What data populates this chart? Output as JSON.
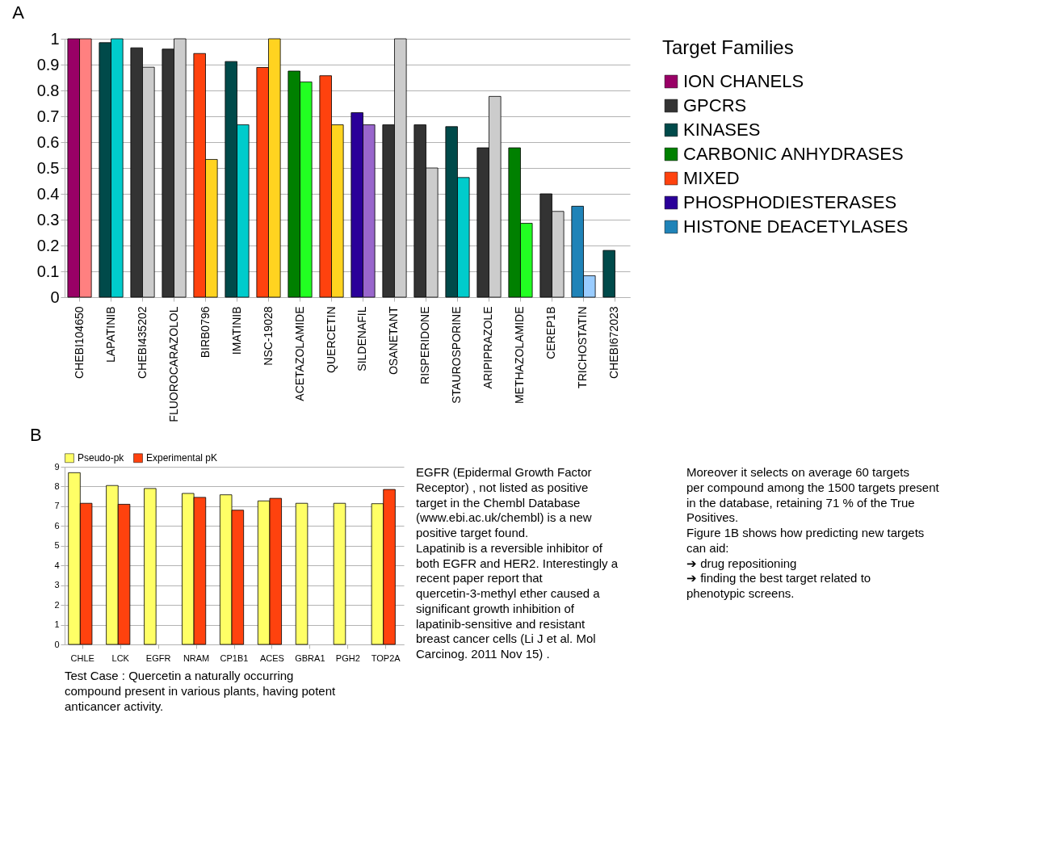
{
  "chart_data": [
    {
      "type": "bar",
      "title": "A",
      "legend_title": "Target Families",
      "legend": "right",
      "grid": "y",
      "categories": [
        "CHEBI104650",
        "LAPATINIB",
        "CHEBI435202",
        "FLUOROCARAZOLOL",
        "BIRB0796",
        "IMATINIB",
        "NSC-19028",
        "ACETAZOLAMIDE",
        "QUERCETIN",
        "SILDENAFIL",
        "OSANETANT",
        "RISPERIDONE",
        "STAUROSPORINE",
        "ARIPIPRAZOLE",
        "METHAZOLAMIDE",
        "CEREP1B",
        "TRICHOSTATIN",
        "CHEBI672023"
      ],
      "ylim": [
        0,
        1
      ],
      "yticks": [
        0,
        0.1,
        0.2,
        0.3,
        0.4,
        0.5,
        0.6,
        0.7,
        0.8,
        0.9,
        1
      ],
      "series": [
        {
          "name": "ION CHANELS",
          "color": "#990066",
          "values": [
            1.0,
            null,
            null,
            null,
            null,
            null,
            null,
            null,
            null,
            null,
            null,
            null,
            null,
            null,
            null,
            null,
            null,
            null
          ]
        },
        {
          "name": "GPCRS",
          "color": "#333333",
          "values": [
            null,
            null,
            0.965,
            0.96,
            null,
            null,
            null,
            null,
            null,
            null,
            0.667,
            0.667,
            null,
            0.578,
            null,
            0.4,
            null,
            null
          ]
        },
        {
          "name": "KINASES",
          "color": "#004a4a",
          "values": [
            null,
            0.985,
            null,
            null,
            null,
            0.912,
            null,
            null,
            null,
            null,
            null,
            null,
            0.66,
            null,
            null,
            null,
            null,
            0.181
          ]
        },
        {
          "name": "CARBONIC ANHYDRASES",
          "color": "#008000",
          "values": [
            null,
            null,
            null,
            null,
            null,
            null,
            null,
            0.875,
            null,
            null,
            null,
            null,
            null,
            null,
            0.578,
            null,
            null,
            null
          ]
        },
        {
          "name": "MIXED",
          "color": "#ff420e",
          "values": [
            null,
            null,
            null,
            null,
            0.943,
            null,
            0.889,
            null,
            0.857,
            null,
            null,
            null,
            null,
            null,
            null,
            null,
            null,
            null
          ]
        },
        {
          "name": "PHOSPHODIESTERASES",
          "color": "#2a0099",
          "values": [
            null,
            null,
            null,
            null,
            null,
            null,
            null,
            null,
            null,
            0.714,
            null,
            null,
            null,
            null,
            null,
            null,
            null,
            null
          ]
        },
        {
          "name": "HISTONE DEACETYLASES",
          "color": "#1f83b8",
          "values": [
            null,
            null,
            null,
            null,
            null,
            null,
            null,
            null,
            null,
            null,
            null,
            null,
            null,
            null,
            null,
            null,
            0.352,
            null
          ]
        },
        {
          "colors": [
            "#ff8080",
            "#00cccc",
            "#cccccc",
            "#cccccc",
            "#ffd320",
            "#00cccc",
            "#ffd320",
            "#22ff22",
            "#ffd320",
            "#9966cc",
            "#cccccc",
            "#cccccc",
            "#00cccc",
            "#cccccc",
            "#22ff22",
            "#cccccc",
            "#99ccff",
            null
          ],
          "values": [
            1.0,
            1.0,
            0.89,
            1.0,
            0.533,
            0.667,
            1.0,
            0.833,
            0.667,
            0.667,
            1.0,
            0.5,
            0.463,
            0.777,
            0.286,
            0.332,
            0.083,
            null
          ]
        }
      ]
    },
    {
      "type": "bar",
      "title": "B",
      "legend": "top",
      "grid": "y",
      "categories": [
        "CHLE",
        "LCK",
        "EGFR",
        "NRAM",
        "CP1B1",
        "ACES",
        "GBRA1",
        "PGH2",
        "TOP2A"
      ],
      "ylim": [
        0,
        9
      ],
      "yticks": [
        0,
        1,
        2,
        3,
        4,
        5,
        6,
        7,
        8,
        9
      ],
      "series": [
        {
          "name": "Pseudo-pk",
          "color": "#ffff66",
          "values": [
            8.7,
            8.05,
            7.9,
            7.65,
            7.58,
            7.27,
            7.15,
            7.15,
            7.13
          ]
        },
        {
          "name": "Experimental pK",
          "color": "#ff420e",
          "values": [
            7.15,
            7.1,
            null,
            7.45,
            6.8,
            7.4,
            null,
            null,
            7.85
          ]
        }
      ],
      "annotations": [
        "Test Case : Quercetin a naturally occurring compound present in various plants, having potent anticancer activity.",
        "EGFR (Epidermal Growth Factor Receptor) , not listed as positive target in the Chembl Database (www.ebi.ac.uk/chembl) is a new positive target found.",
        "Lapatinib is a reversible inhibitor of both EGFR and HER2. Interestingly a recent paper report that quercetin-3-methyl ether caused a significant growth inhibition of lapatinib-sensitive and resistant breast cancer cells (Li J et al. Mol Carcinog. 2011 Nov 15) .",
        "Moreover it selects on average 60 targets per compound among the 1500 targets present in the database, retaining 71 % of the True Positives.",
        "Figure 1B shows how predicting new targets can aid:",
        "➔ drug repositioning",
        "➔ finding the best target related to phenotypic screens."
      ]
    }
  ]
}
